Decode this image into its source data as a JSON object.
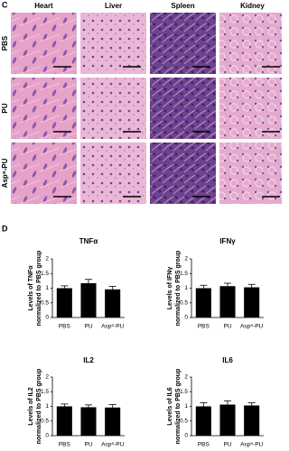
{
  "panel_c": {
    "label": "C",
    "columns": [
      "Heart",
      "Liver",
      "Spleen",
      "Kidney"
    ],
    "rows": [
      "PBS",
      "PU",
      "Asp⁸-PU"
    ]
  },
  "panel_d": {
    "label": "D"
  },
  "chart_data": [
    {
      "type": "bar",
      "title": "TNFα",
      "ylabel": [
        "Levels of TNFα",
        "normalized to PBS group"
      ],
      "categories": [
        "PBS",
        "PU",
        "Asp⁸-PU"
      ],
      "values": [
        1.0,
        1.17,
        0.96
      ],
      "errors": [
        0.08,
        0.13,
        0.1
      ],
      "color": "#000000",
      "ylim": [
        0,
        2
      ],
      "yticks": [
        0,
        0.5,
        1,
        1.5,
        2
      ]
    },
    {
      "type": "bar",
      "title": "IFNγ",
      "ylabel": [
        "Levels of IFNγ",
        "normalized to PBS group"
      ],
      "categories": [
        "PBS",
        "PU",
        "Asp⁸-PU"
      ],
      "values": [
        1.0,
        1.07,
        1.03
      ],
      "errors": [
        0.1,
        0.1,
        0.1
      ],
      "color": "#000000",
      "ylim": [
        0,
        2
      ],
      "yticks": [
        0,
        0.5,
        1,
        1.5,
        2
      ]
    },
    {
      "type": "bar",
      "title": "IL2",
      "ylabel": [
        "Levels of IL2",
        "normalized to PBS group"
      ],
      "categories": [
        "PBS",
        "PU",
        "Asp⁸-PU"
      ],
      "values": [
        1.0,
        0.97,
        0.96
      ],
      "errors": [
        0.08,
        0.08,
        0.1
      ],
      "color": "#000000",
      "ylim": [
        0,
        2
      ],
      "yticks": [
        0,
        0.5,
        1,
        1.5,
        2
      ]
    },
    {
      "type": "bar",
      "title": "IL6",
      "ylabel": [
        "Levels of IL6",
        "normalized to PBS group"
      ],
      "categories": [
        "PBS",
        "PU",
        "Asp⁸-PU"
      ],
      "values": [
        1.0,
        1.06,
        1.03
      ],
      "errors": [
        0.12,
        0.13,
        0.09
      ],
      "color": "#000000",
      "ylim": [
        0,
        2
      ],
      "yticks": [
        0,
        0.5,
        1,
        1.5,
        2
      ]
    }
  ]
}
